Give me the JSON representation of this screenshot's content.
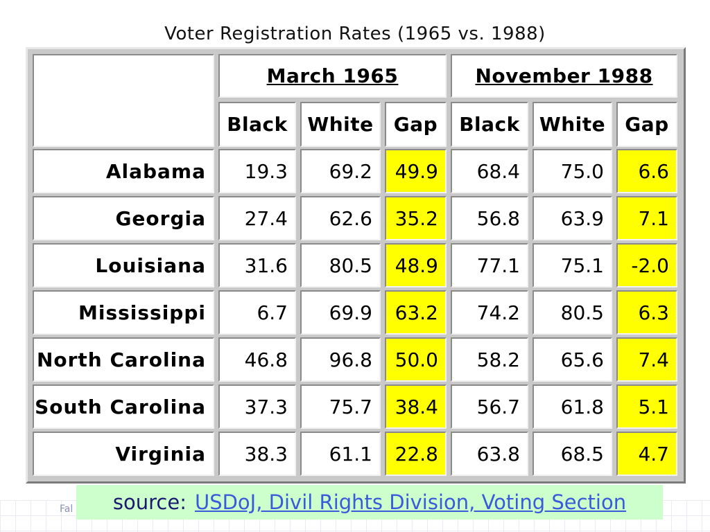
{
  "title": "Voter Registration Rates (1965 vs. 1988)",
  "table": {
    "groups": [
      "March 1965",
      "November 1988"
    ],
    "columns": [
      "Black",
      "White",
      "Gap",
      "Black",
      "White",
      "Gap"
    ],
    "rows": [
      {
        "state": "Alabama",
        "values": [
          "19.3",
          "69.2",
          "49.9",
          "68.4",
          "75.0",
          "6.6"
        ]
      },
      {
        "state": "Georgia",
        "values": [
          "27.4",
          "62.6",
          "35.2",
          "56.8",
          "63.9",
          "7.1"
        ]
      },
      {
        "state": "Louisiana",
        "values": [
          "31.6",
          "80.5",
          "48.9",
          "77.1",
          "75.1",
          "-2.0"
        ]
      },
      {
        "state": "Mississippi",
        "values": [
          "6.7",
          "69.9",
          "63.2",
          "74.2",
          "80.5",
          "6.3"
        ]
      },
      {
        "state": "North Carolina",
        "values": [
          "46.8",
          "96.8",
          "50.0",
          "58.2",
          "65.6",
          "7.4"
        ]
      },
      {
        "state": "South Carolina",
        "values": [
          "37.3",
          "75.7",
          "38.4",
          "56.7",
          "61.8",
          "5.1"
        ]
      },
      {
        "state": "Virginia",
        "values": [
          "38.3",
          "61.1",
          "22.8",
          "63.8",
          "68.5",
          "4.7"
        ]
      }
    ]
  },
  "chart_data": {
    "type": "table",
    "title": "Voter Registration Rates (1965 vs. 1988)",
    "column_groups": [
      {
        "name": "March 1965",
        "columns": [
          "Black",
          "White",
          "Gap"
        ]
      },
      {
        "name": "November 1988",
        "columns": [
          "Black",
          "White",
          "Gap"
        ]
      }
    ],
    "row_labels": [
      "Alabama",
      "Georgia",
      "Louisiana",
      "Mississippi",
      "North Carolina",
      "South Carolina",
      "Virginia"
    ],
    "values": [
      [
        19.3,
        69.2,
        49.9,
        68.4,
        75.0,
        6.6
      ],
      [
        27.4,
        62.6,
        35.2,
        56.8,
        63.9,
        7.1
      ],
      [
        31.6,
        80.5,
        48.9,
        77.1,
        75.1,
        -2.0
      ],
      [
        6.7,
        69.9,
        63.2,
        74.2,
        80.5,
        6.3
      ],
      [
        46.8,
        96.8,
        50.0,
        58.2,
        65.6,
        7.4
      ],
      [
        37.3,
        75.7,
        38.4,
        56.7,
        61.8,
        5.1
      ],
      [
        38.3,
        61.1,
        22.8,
        63.8,
        68.5,
        4.7
      ]
    ],
    "highlight_columns": [
      "Gap"
    ],
    "highlight_color": "#ffff00"
  },
  "source": {
    "prefix": "source:",
    "link_text": "USDoJ, Divil Rights Division, Voting Section"
  },
  "footer": {
    "fragment": "Fal"
  },
  "colors": {
    "gap_highlight": "#ffff00",
    "source_background": "#ccffcc",
    "link": "#3a5bd9"
  }
}
